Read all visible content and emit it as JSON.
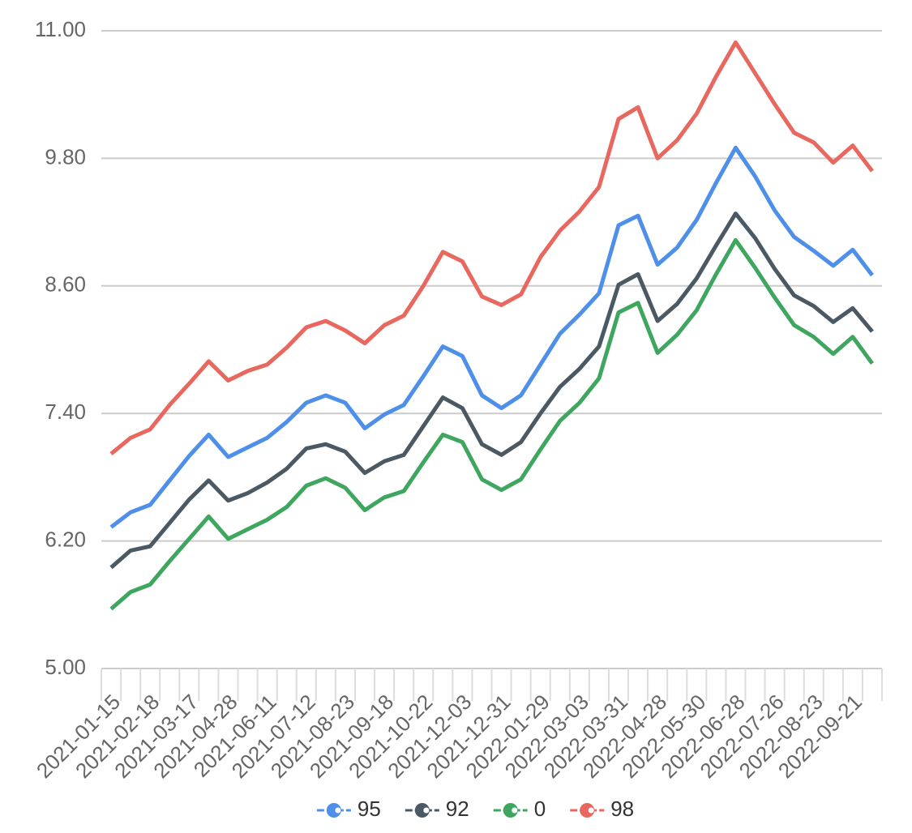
{
  "chart_data": {
    "type": "line",
    "categories": [
      "2021-01-15",
      null,
      "2021-02-18",
      null,
      "2021-03-17",
      null,
      "2021-04-28",
      null,
      "2021-06-11",
      null,
      "2021-07-12",
      null,
      "2021-08-23",
      null,
      "2021-09-18",
      null,
      "2021-10-22",
      null,
      "2021-12-03",
      null,
      "2021-12-31",
      null,
      "2022-01-29",
      null,
      "2022-03-03",
      null,
      "2022-03-31",
      null,
      "2022-04-28",
      null,
      "2022-05-30",
      null,
      "2022-06-28",
      null,
      "2022-07-26",
      null,
      "2022-08-23",
      null,
      "2022-09-21",
      null
    ],
    "series": [
      {
        "name": "95",
        "color": "#4e8fe9",
        "values": [
          6.33,
          6.47,
          6.54,
          6.77,
          7.0,
          7.2,
          6.99,
          7.08,
          7.17,
          7.32,
          7.5,
          7.57,
          7.5,
          7.26,
          7.39,
          7.48,
          7.75,
          8.03,
          7.94,
          7.57,
          7.45,
          7.57,
          7.86,
          8.15,
          8.33,
          8.53,
          9.17,
          9.26,
          8.8,
          8.96,
          9.22,
          9.57,
          9.9,
          9.63,
          9.31,
          9.06,
          8.93,
          8.79,
          8.94,
          8.7
        ]
      },
      {
        "name": "92",
        "color": "#4a5964",
        "values": [
          5.95,
          6.11,
          6.15,
          6.37,
          6.59,
          6.77,
          6.58,
          6.65,
          6.75,
          6.88,
          7.07,
          7.11,
          7.04,
          6.84,
          6.95,
          7.01,
          7.28,
          7.55,
          7.45,
          7.11,
          7.01,
          7.13,
          7.4,
          7.65,
          7.82,
          8.03,
          8.61,
          8.71,
          8.27,
          8.43,
          8.67,
          8.98,
          9.28,
          9.05,
          8.76,
          8.51,
          8.41,
          8.26,
          8.39,
          8.17
        ]
      },
      {
        "name": "0",
        "color": "#3fa660",
        "values": [
          5.56,
          5.72,
          5.79,
          6.01,
          6.22,
          6.43,
          6.22,
          6.31,
          6.4,
          6.52,
          6.72,
          6.79,
          6.7,
          6.49,
          6.61,
          6.67,
          6.94,
          7.2,
          7.13,
          6.78,
          6.68,
          6.78,
          7.06,
          7.33,
          7.5,
          7.73,
          8.35,
          8.44,
          7.97,
          8.14,
          8.37,
          8.71,
          9.03,
          8.77,
          8.49,
          8.23,
          8.12,
          7.96,
          8.12,
          7.87
        ]
      },
      {
        "name": "98",
        "color": "#e8675e",
        "values": [
          7.02,
          7.17,
          7.25,
          7.48,
          7.68,
          7.89,
          7.71,
          7.8,
          7.86,
          8.02,
          8.21,
          8.27,
          8.18,
          8.06,
          8.23,
          8.32,
          8.6,
          8.92,
          8.83,
          8.5,
          8.42,
          8.52,
          8.87,
          9.12,
          9.3,
          9.53,
          10.17,
          10.28,
          9.8,
          9.97,
          10.22,
          10.57,
          10.89,
          10.6,
          10.31,
          10.04,
          9.95,
          9.76,
          9.92,
          9.68
        ]
      }
    ],
    "ylim": [
      5,
      11
    ],
    "yticks": [
      {
        "value": 5,
        "label": "5.00"
      },
      {
        "value": 6.2,
        "label": "6.20"
      },
      {
        "value": 7.4,
        "label": "7.40"
      },
      {
        "value": 8.6,
        "label": "8.60"
      },
      {
        "value": 9.8,
        "label": "9.80"
      },
      {
        "value": 11,
        "label": "11.00"
      }
    ],
    "grid": true,
    "legend": "bottom"
  }
}
